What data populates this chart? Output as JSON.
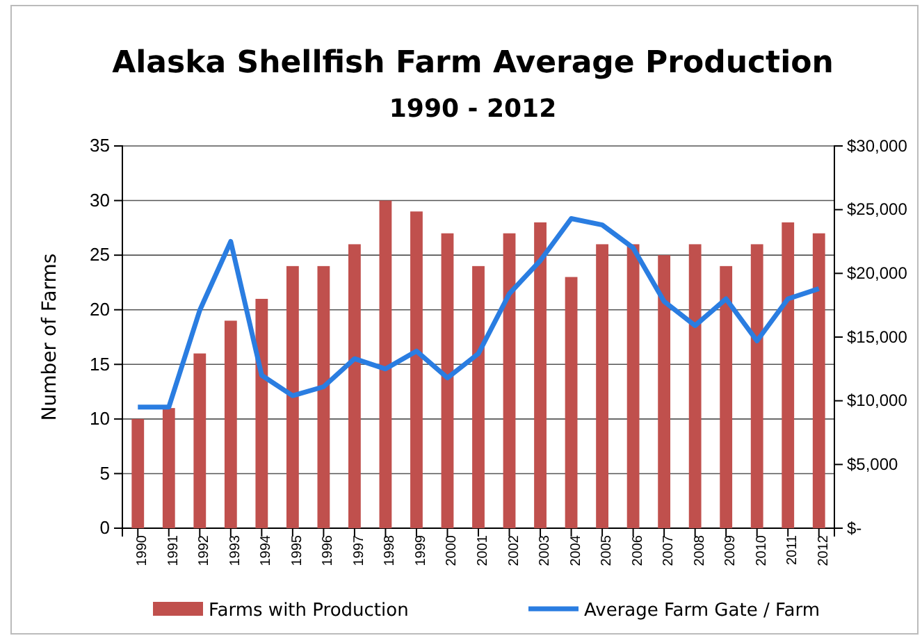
{
  "chart_data": {
    "type": "bar",
    "title": "Alaska Shellfish Farm Average Production",
    "subtitle": "1990 - 2012",
    "ylabel": "Number of Farms",
    "categories": [
      "1990",
      "1991",
      "1992",
      "1993",
      "1994",
      "1995",
      "1996",
      "1997",
      "1998",
      "1999",
      "2000",
      "2001",
      "2002",
      "2003",
      "2004",
      "2005",
      "2006",
      "2007",
      "2008",
      "2009",
      "2010",
      "2011",
      "2012"
    ],
    "series": [
      {
        "name": "Farms with Production",
        "color": "#c0504d",
        "values": [
          10,
          11,
          16,
          19,
          21,
          24,
          24,
          26,
          30,
          29,
          27,
          24,
          27,
          28,
          23,
          26,
          26,
          25,
          26,
          24,
          26,
          28,
          27
        ]
      },
      {
        "name": "Average Farm Gate / Farm",
        "type": "line",
        "axis": "y2",
        "color": "#2a7de1",
        "values": [
          9500,
          9500,
          17100,
          22500,
          12000,
          10400,
          11100,
          13300,
          12500,
          13900,
          11800,
          13700,
          18400,
          21000,
          24300,
          23800,
          22000,
          17800,
          15900,
          18000,
          14700,
          18000,
          18800
        ]
      }
    ],
    "ylim": [
      0,
      35
    ],
    "yticks": [
      0,
      5,
      10,
      15,
      20,
      25,
      30,
      35
    ],
    "y2lim": [
      0,
      30000
    ],
    "y2ticks": [
      {
        "value": 0,
        "label": "$-"
      },
      {
        "value": 5000,
        "label": "$5,000"
      },
      {
        "value": 10000,
        "label": "$10,000"
      },
      {
        "value": 15000,
        "label": "$15,000"
      },
      {
        "value": 20000,
        "label": "$20,000"
      },
      {
        "value": 25000,
        "label": "$25,000"
      },
      {
        "value": 30000,
        "label": "$30,000"
      }
    ],
    "grid": "y",
    "legend": "bottom",
    "marker": "none",
    "line_style": "solid"
  }
}
